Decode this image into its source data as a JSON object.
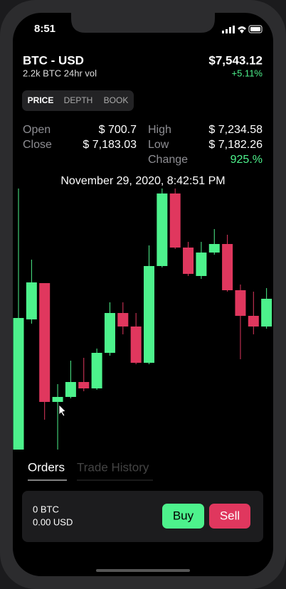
{
  "status": {
    "time": "8:51"
  },
  "header": {
    "pair": "BTC - USD",
    "volume": "2.2k BTC 24hr vol",
    "price": "$7,543.12",
    "change": "+5.11%"
  },
  "tabs": [
    "PRICE",
    "DEPTH",
    "BOOK"
  ],
  "stats": [
    {
      "label": "Open",
      "value": "$ 700.7"
    },
    {
      "label": "Close",
      "value": "$ 7,183.03"
    },
    {
      "label": "High",
      "value": "$ 7,234.58"
    },
    {
      "label": "Low",
      "value": "$ 7,182.26"
    },
    {
      "label": "Change",
      "value": "925.%"
    }
  ],
  "timestamp": "November 29, 2020, 8:42:51 PM",
  "chart_data": {
    "type": "candlestick",
    "up_color": "#4df28c",
    "down_color": "#e0375e",
    "open": [
      0,
      183,
      234,
      67,
      74,
      95,
      86,
      136,
      192,
      173,
      122,
      258,
      360,
      284,
      244,
      277,
      289,
      224,
      188,
      173
    ],
    "high": [
      367,
      267,
      234,
      92,
      125,
      129,
      142,
      207,
      207,
      192,
      287,
      367,
      367,
      292,
      292,
      310,
      302,
      232,
      222,
      227
    ],
    "low": [
      0,
      177,
      42,
      0,
      72,
      82,
      84,
      132,
      162,
      120,
      120,
      256,
      282,
      244,
      240,
      274,
      222,
      127,
      162,
      170
    ],
    "close": [
      185,
      235,
      67,
      74,
      95,
      86,
      136,
      192,
      173,
      122,
      258,
      360,
      284,
      247,
      277,
      289,
      224,
      188,
      173,
      212
    ]
  },
  "order_tabs": [
    "Orders",
    "Trade History"
  ],
  "balance": {
    "btc": "0 BTC",
    "usd": "0.00 USD"
  },
  "actions": [
    "Buy",
    "Sell"
  ]
}
